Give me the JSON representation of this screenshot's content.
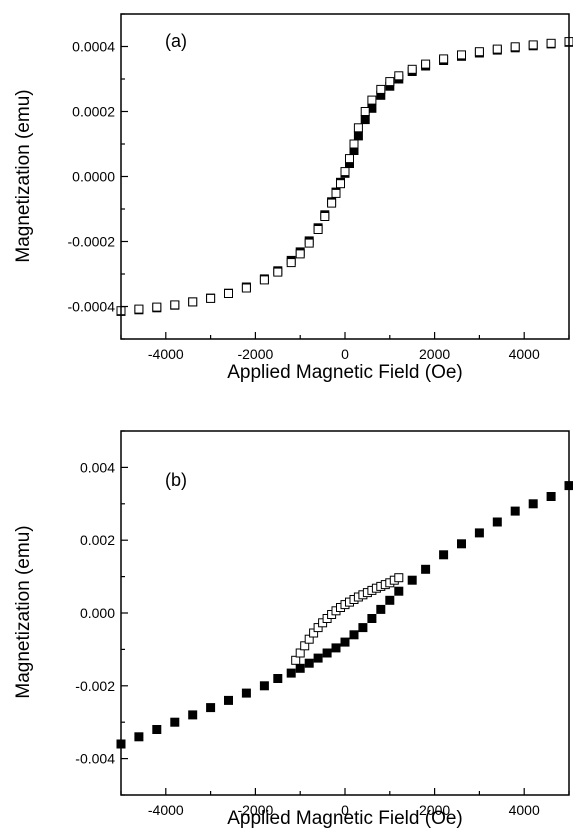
{
  "chart_data": [
    {
      "type": "scatter",
      "panel_label": "(a)",
      "xlabel": "Applied Magnetic Field (Oe)",
      "ylabel": "Magnetization (emu)",
      "xlim": [
        -5000,
        5000
      ],
      "ylim": [
        -0.0005,
        0.0005
      ],
      "xticks": [
        -4000,
        -2000,
        0,
        2000,
        4000
      ],
      "xtick_labels": [
        "-4000",
        "-2000",
        "0",
        "2000",
        "4000"
      ],
      "yticks": [
        -0.0004,
        -0.0002,
        0.0,
        0.0002,
        0.0004
      ],
      "ytick_labels": [
        "-0.0004",
        "-0.0002",
        "0.0000",
        "0.0002",
        "0.0004"
      ],
      "grid": false,
      "series": [
        {
          "marker": "filled-square",
          "color": "#000000",
          "x": [
            -5000,
            -4600,
            -4200,
            -3800,
            -3400,
            -3000,
            -2600,
            -2200,
            -1800,
            -1500,
            -1200,
            -1000,
            -800,
            -600,
            -450,
            -300,
            -200,
            -100,
            0,
            100,
            200,
            300,
            450,
            600,
            800,
            1000,
            1200,
            1500,
            1800,
            2200,
            2600,
            3000,
            3400,
            3800,
            4200,
            4600,
            5000
          ],
          "y": [
            -0.000415,
            -0.00041,
            -0.000404,
            -0.000396,
            -0.000386,
            -0.000374,
            -0.000359,
            -0.00034,
            -0.000315,
            -0.00029,
            -0.000258,
            -0.000232,
            -0.000198,
            -0.000158,
            -0.000118,
            -7.8e-05,
            -4.8e-05,
            -1.8e-05,
            1e-05,
            4e-05,
            8e-05,
            0.000125,
            0.000175,
            0.00021,
            0.00025,
            0.000278,
            0.0003,
            0.000323,
            0.00034,
            0.000357,
            0.00037,
            0.00038,
            0.000389,
            0.000396,
            0.000402,
            0.000408,
            0.000413
          ]
        },
        {
          "marker": "open-square",
          "color": "#000000",
          "x": [
            -5000,
            -4600,
            -4200,
            -3800,
            -3400,
            -3000,
            -2600,
            -2200,
            -1800,
            -1500,
            -1200,
            -1000,
            -800,
            -600,
            -450,
            -300,
            -200,
            -100,
            0,
            100,
            200,
            300,
            450,
            600,
            800,
            1000,
            1200,
            1500,
            1800,
            2200,
            2600,
            3000,
            3400,
            3800,
            4200,
            4600,
            5000
          ],
          "y": [
            -0.000413,
            -0.000408,
            -0.000402,
            -0.000395,
            -0.000386,
            -0.000375,
            -0.00036,
            -0.000343,
            -0.000318,
            -0.000294,
            -0.000265,
            -0.000238,
            -0.000205,
            -0.000163,
            -0.000123,
            -8.2e-05,
            -5.2e-05,
            -2.2e-05,
            1.5e-05,
            5.5e-05,
            0.0001,
            0.00015,
            0.0002,
            0.000235,
            0.000268,
            0.000292,
            0.00031,
            0.00033,
            0.000346,
            0.000362,
            0.000374,
            0.000384,
            0.000392,
            0.000399,
            0.000405,
            0.00041,
            0.000415
          ]
        }
      ]
    },
    {
      "type": "scatter",
      "panel_label": "(b)",
      "xlabel": "Applied Magnetic Field (Oe)",
      "ylabel": "Magnetization (emu)",
      "xlim": [
        -5000,
        5000
      ],
      "ylim": [
        -0.005,
        0.005
      ],
      "xticks": [
        -4000,
        -2000,
        0,
        2000,
        4000
      ],
      "xtick_labels": [
        "-4000",
        "-2000",
        "0",
        "2000",
        "4000"
      ],
      "yticks": [
        -0.004,
        -0.002,
        0.0,
        0.002,
        0.004
      ],
      "ytick_labels": [
        "-0.004",
        "-0.002",
        "0.000",
        "0.002",
        "0.004"
      ],
      "grid": false,
      "series": [
        {
          "marker": "filled-square",
          "color": "#000000",
          "x": [
            -5000,
            -4600,
            -4200,
            -3800,
            -3400,
            -3000,
            -2600,
            -2200,
            -1800,
            -1500,
            -1200,
            -1000,
            -800,
            -600,
            -400,
            -200,
            0,
            200,
            400,
            600,
            800,
            1000,
            1200,
            1500,
            1800,
            2200,
            2600,
            3000,
            3400,
            3800,
            4200,
            4600,
            5000
          ],
          "y": [
            -0.0036,
            -0.0034,
            -0.0032,
            -0.003,
            -0.0028,
            -0.0026,
            -0.0024,
            -0.0022,
            -0.002,
            -0.0018,
            -0.00165,
            -0.00152,
            -0.00138,
            -0.00124,
            -0.0011,
            -0.00096,
            -0.0008,
            -0.0006,
            -0.0004,
            -0.00015,
            0.0001,
            0.00035,
            0.0006,
            0.0009,
            0.0012,
            0.0016,
            0.0019,
            0.0022,
            0.0025,
            0.0028,
            0.003,
            0.0032,
            0.0035
          ]
        },
        {
          "marker": "open-square",
          "color": "#000000",
          "x": [
            -1100,
            -1000,
            -900,
            -800,
            -700,
            -600,
            -500,
            -400,
            -300,
            -200,
            -100,
            0,
            100,
            200,
            300,
            400,
            500,
            600,
            700,
            800,
            900,
            1000,
            1100,
            1200
          ],
          "y": [
            -0.0013,
            -0.0011,
            -0.0009,
            -0.00072,
            -0.00055,
            -0.0004,
            -0.00027,
            -0.00015,
            -4e-05,
            6e-05,
            0.00015,
            0.00023,
            0.0003,
            0.00037,
            0.00044,
            0.0005,
            0.00056,
            0.00062,
            0.00068,
            0.00073,
            0.00078,
            0.00083,
            0.0009,
            0.00097
          ]
        }
      ]
    }
  ]
}
